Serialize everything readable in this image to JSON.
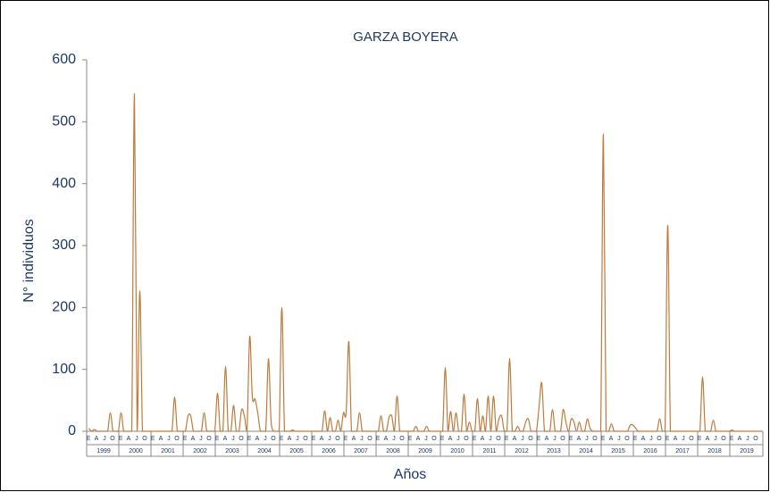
{
  "chart_data": {
    "type": "line",
    "title": "GARZA BOYERA",
    "ylabel": "N° individuos",
    "xlabel": "Años",
    "years": [
      "1999",
      "2000",
      "2001",
      "2002",
      "2003",
      "2004",
      "2005",
      "2006",
      "2007",
      "2008",
      "2009",
      "2010",
      "2011",
      "2012",
      "2013",
      "2014",
      "2015",
      "2016",
      "2017",
      "2018",
      "2019"
    ],
    "categories": [
      "E",
      null,
      null,
      "A",
      null,
      null,
      "J",
      null,
      null,
      "O",
      null,
      null,
      "E",
      null,
      null,
      "A",
      null,
      null,
      "J",
      null,
      null,
      "O",
      null,
      null,
      "E",
      null,
      null,
      "A",
      null,
      null,
      "J",
      null,
      null,
      "O",
      null,
      null,
      "E",
      null,
      null,
      "A",
      null,
      null,
      "J",
      null,
      null,
      "O",
      null,
      null,
      "E",
      null,
      null,
      "A",
      null,
      null,
      "J",
      null,
      null,
      "O",
      null,
      null,
      "E",
      null,
      null,
      "A",
      null,
      null,
      "J",
      null,
      null,
      "O",
      null,
      null,
      "E",
      null,
      null,
      "A",
      null,
      null,
      "J",
      null,
      null,
      "O",
      null,
      null,
      "E",
      null,
      null,
      "A",
      null,
      null,
      "J",
      null,
      null,
      "O",
      null,
      null,
      "E",
      null,
      null,
      "A",
      null,
      null,
      "J",
      null,
      null,
      "O",
      null,
      null,
      "E",
      null,
      null,
      "A",
      null,
      null,
      "J",
      null,
      null,
      "O",
      null,
      null,
      "E",
      null,
      null,
      "A",
      null,
      null,
      "J",
      null,
      null,
      "O",
      null,
      null,
      "E",
      null,
      null,
      "A",
      null,
      null,
      "J",
      null,
      null,
      "O",
      null,
      null,
      "E",
      null,
      null,
      "A",
      null,
      null,
      "J",
      null,
      null,
      "O",
      null,
      null,
      "E",
      null,
      null,
      "A",
      null,
      null,
      "J",
      null,
      null,
      "O",
      null,
      null,
      "E",
      null,
      null,
      "A",
      null,
      null,
      "J",
      null,
      null,
      "O",
      null,
      null,
      "E",
      null,
      null,
      "A",
      null,
      null,
      "J",
      null,
      null,
      "O",
      null,
      null,
      "E",
      null,
      null,
      "A",
      null,
      null,
      "J",
      null,
      null,
      "O",
      null,
      null,
      "E",
      null,
      null,
      "A",
      null,
      null,
      "J",
      null,
      null,
      "O",
      null,
      null,
      "E",
      null,
      null,
      "A",
      null,
      null,
      "J",
      null,
      null,
      "O",
      null,
      null,
      "E",
      null,
      null,
      "A",
      null,
      null,
      "J",
      null,
      null,
      "O",
      null,
      null,
      "E",
      null,
      null,
      "A",
      null,
      null,
      "J",
      null,
      null,
      "O",
      null,
      null
    ],
    "values": [
      5,
      0,
      3,
      0,
      0,
      0,
      0,
      0,
      30,
      0,
      0,
      0,
      30,
      0,
      0,
      0,
      0,
      545,
      0,
      227,
      0,
      0,
      0,
      0,
      0,
      0,
      0,
      0,
      0,
      0,
      0,
      0,
      55,
      0,
      0,
      0,
      0,
      25,
      25,
      0,
      0,
      0,
      0,
      30,
      0,
      0,
      0,
      0,
      62,
      0,
      0,
      105,
      0,
      0,
      42,
      0,
      0,
      35,
      25,
      0,
      153,
      55,
      52,
      30,
      0,
      0,
      0,
      117,
      15,
      0,
      0,
      0,
      200,
      0,
      0,
      0,
      2,
      0,
      0,
      0,
      0,
      0,
      0,
      0,
      0,
      0,
      0,
      0,
      33,
      0,
      22,
      0,
      0,
      18,
      0,
      30,
      30,
      145,
      0,
      0,
      0,
      30,
      0,
      0,
      0,
      0,
      0,
      0,
      0,
      25,
      0,
      0,
      22,
      25,
      0,
      57,
      0,
      0,
      0,
      0,
      0,
      0,
      8,
      0,
      0,
      0,
      8,
      0,
      0,
      0,
      0,
      0,
      0,
      103,
      0,
      32,
      0,
      30,
      0,
      0,
      60,
      0,
      15,
      0,
      0,
      53,
      0,
      25,
      0,
      57,
      0,
      57,
      0,
      20,
      25,
      0,
      0,
      118,
      0,
      0,
      8,
      0,
      0,
      15,
      20,
      0,
      0,
      0,
      40,
      78,
      0,
      0,
      0,
      35,
      0,
      0,
      0,
      35,
      15,
      0,
      20,
      15,
      0,
      15,
      0,
      0,
      20,
      5,
      0,
      0,
      0,
      0,
      480,
      0,
      0,
      12,
      0,
      0,
      0,
      0,
      0,
      0,
      10,
      10,
      5,
      0,
      0,
      0,
      0,
      0,
      0,
      0,
      0,
      20,
      0,
      0,
      333,
      0,
      0,
      0,
      0,
      0,
      0,
      0,
      0,
      0,
      0,
      0,
      0,
      88,
      0,
      0,
      0,
      18,
      0,
      0,
      0,
      0,
      0,
      0,
      2,
      0,
      0,
      0,
      0,
      0,
      0,
      0,
      0,
      0,
      0,
      0
    ],
    "color": "#c07a3c",
    "ylim": [
      0,
      600
    ],
    "yticks": [
      0,
      100,
      200,
      300,
      400,
      500,
      600
    ]
  }
}
